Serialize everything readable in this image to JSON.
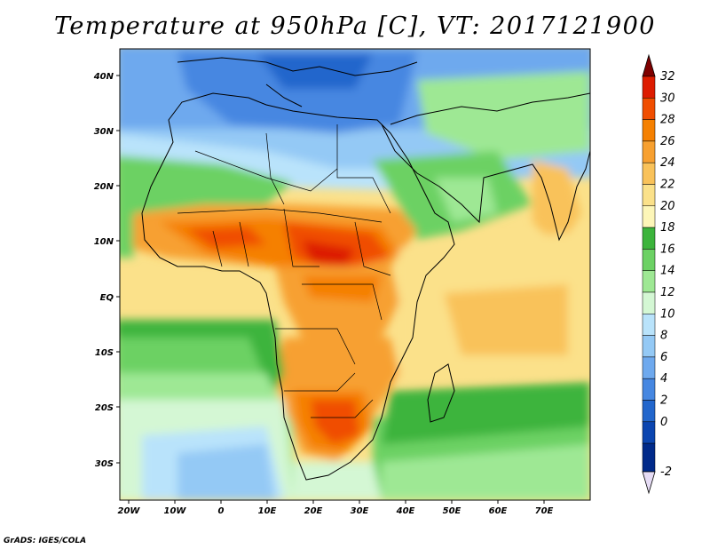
{
  "title": "Temperature at 950hPa [C], VT: 2017121900",
  "credit": "GrADS: IGES/COLA",
  "map": {
    "lat_labels": [
      "40N",
      "30N",
      "20N",
      "10N",
      "EQ",
      "10S",
      "20S",
      "30S"
    ],
    "lon_labels": [
      "20W",
      "10W",
      "0",
      "10E",
      "20E",
      "30E",
      "40E",
      "50E",
      "60E",
      "70E"
    ]
  },
  "colorbar": {
    "labels": [
      "32",
      "30",
      "28",
      "26",
      "24",
      "22",
      "20",
      "18",
      "16",
      "14",
      "12",
      "10",
      "8",
      "6",
      "4",
      "2",
      "0",
      "-2"
    ],
    "colors": [
      "#7f0000",
      "#dd1c00",
      "#f04e00",
      "#f58000",
      "#f7a030",
      "#f9c25a",
      "#fbe18a",
      "#fdf6b8",
      "#3cb43c",
      "#6cd164",
      "#9ee894",
      "#d4f7d4",
      "#b9e3fb",
      "#94c9f5",
      "#6ea9ee",
      "#4687e1",
      "#2266cc",
      "#0b45b0",
      "#002a8a"
    ]
  }
}
